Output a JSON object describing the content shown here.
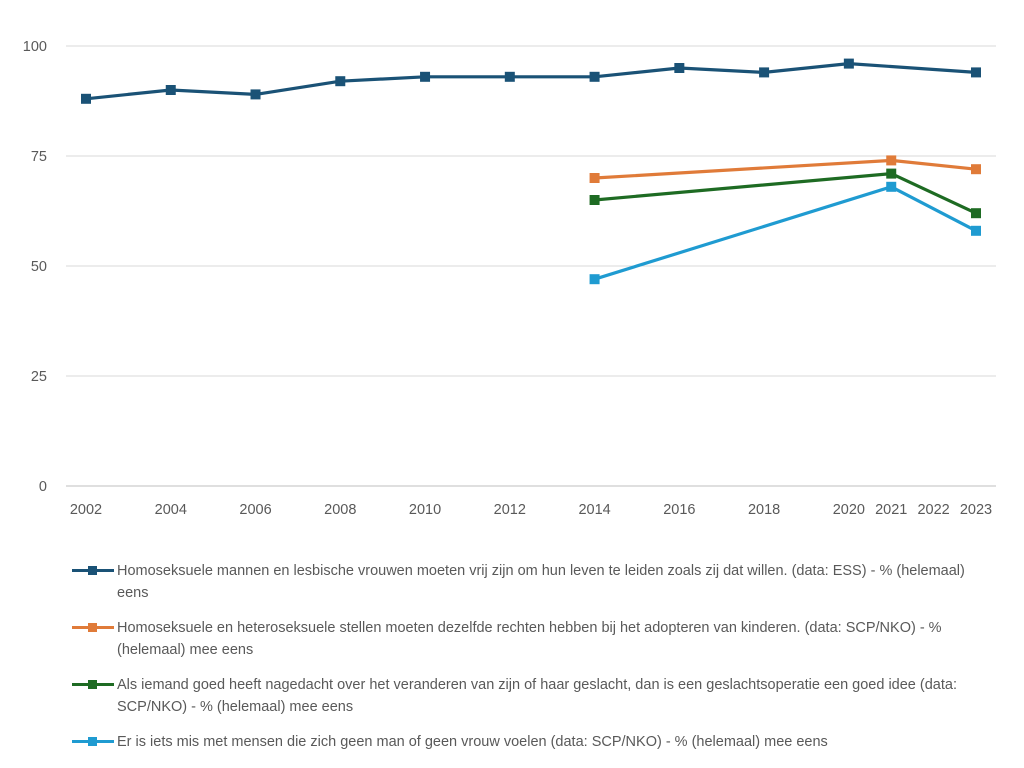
{
  "chart_data": {
    "type": "line",
    "title": "",
    "xlabel": "",
    "ylabel": "",
    "ylim": [
      0,
      100
    ],
    "yticks": [
      0,
      25,
      50,
      75,
      100
    ],
    "x": [
      2002,
      2004,
      2006,
      2008,
      2010,
      2012,
      2014,
      2016,
      2018,
      2020,
      2021,
      2022,
      2023
    ],
    "grid": true,
    "legend_position": "bottom",
    "series": [
      {
        "name": "Homoseksuele mannen en lesbische vrouwen moeten vrij zijn om hun leven te leiden zoals zij dat willen. (data: ESS) - % (helemaal) eens",
        "color": "#1a5276",
        "values": [
          88,
          90,
          89,
          92,
          93,
          93,
          93,
          95,
          94,
          96,
          null,
          null,
          94
        ]
      },
      {
        "name": "Homoseksuele en heteroseksuele stellen moeten dezelfde rechten hebben bij het adopteren van kinderen. (data: SCP/NKO) - % (helemaal) mee eens",
        "color": "#e07b39",
        "values": [
          null,
          null,
          null,
          null,
          null,
          null,
          70,
          null,
          null,
          null,
          74,
          null,
          72
        ]
      },
      {
        "name": "Als iemand goed heeft nagedacht over het veranderen van zijn of haar geslacht, dan is een geslachtsoperatie een goed idee (data: SCP/NKO) - % (helemaal) mee eens",
        "color": "#1e6b23",
        "values": [
          null,
          null,
          null,
          null,
          null,
          null,
          65,
          null,
          null,
          null,
          71,
          null,
          62
        ]
      },
      {
        "name": "Er is iets mis met mensen die zich geen man of geen vrouw voelen (data: SCP/NKO) - % (helemaal) mee eens",
        "color": "#1f9bd1",
        "values": [
          null,
          null,
          null,
          null,
          null,
          null,
          47,
          null,
          null,
          null,
          68,
          null,
          58
        ]
      }
    ]
  }
}
